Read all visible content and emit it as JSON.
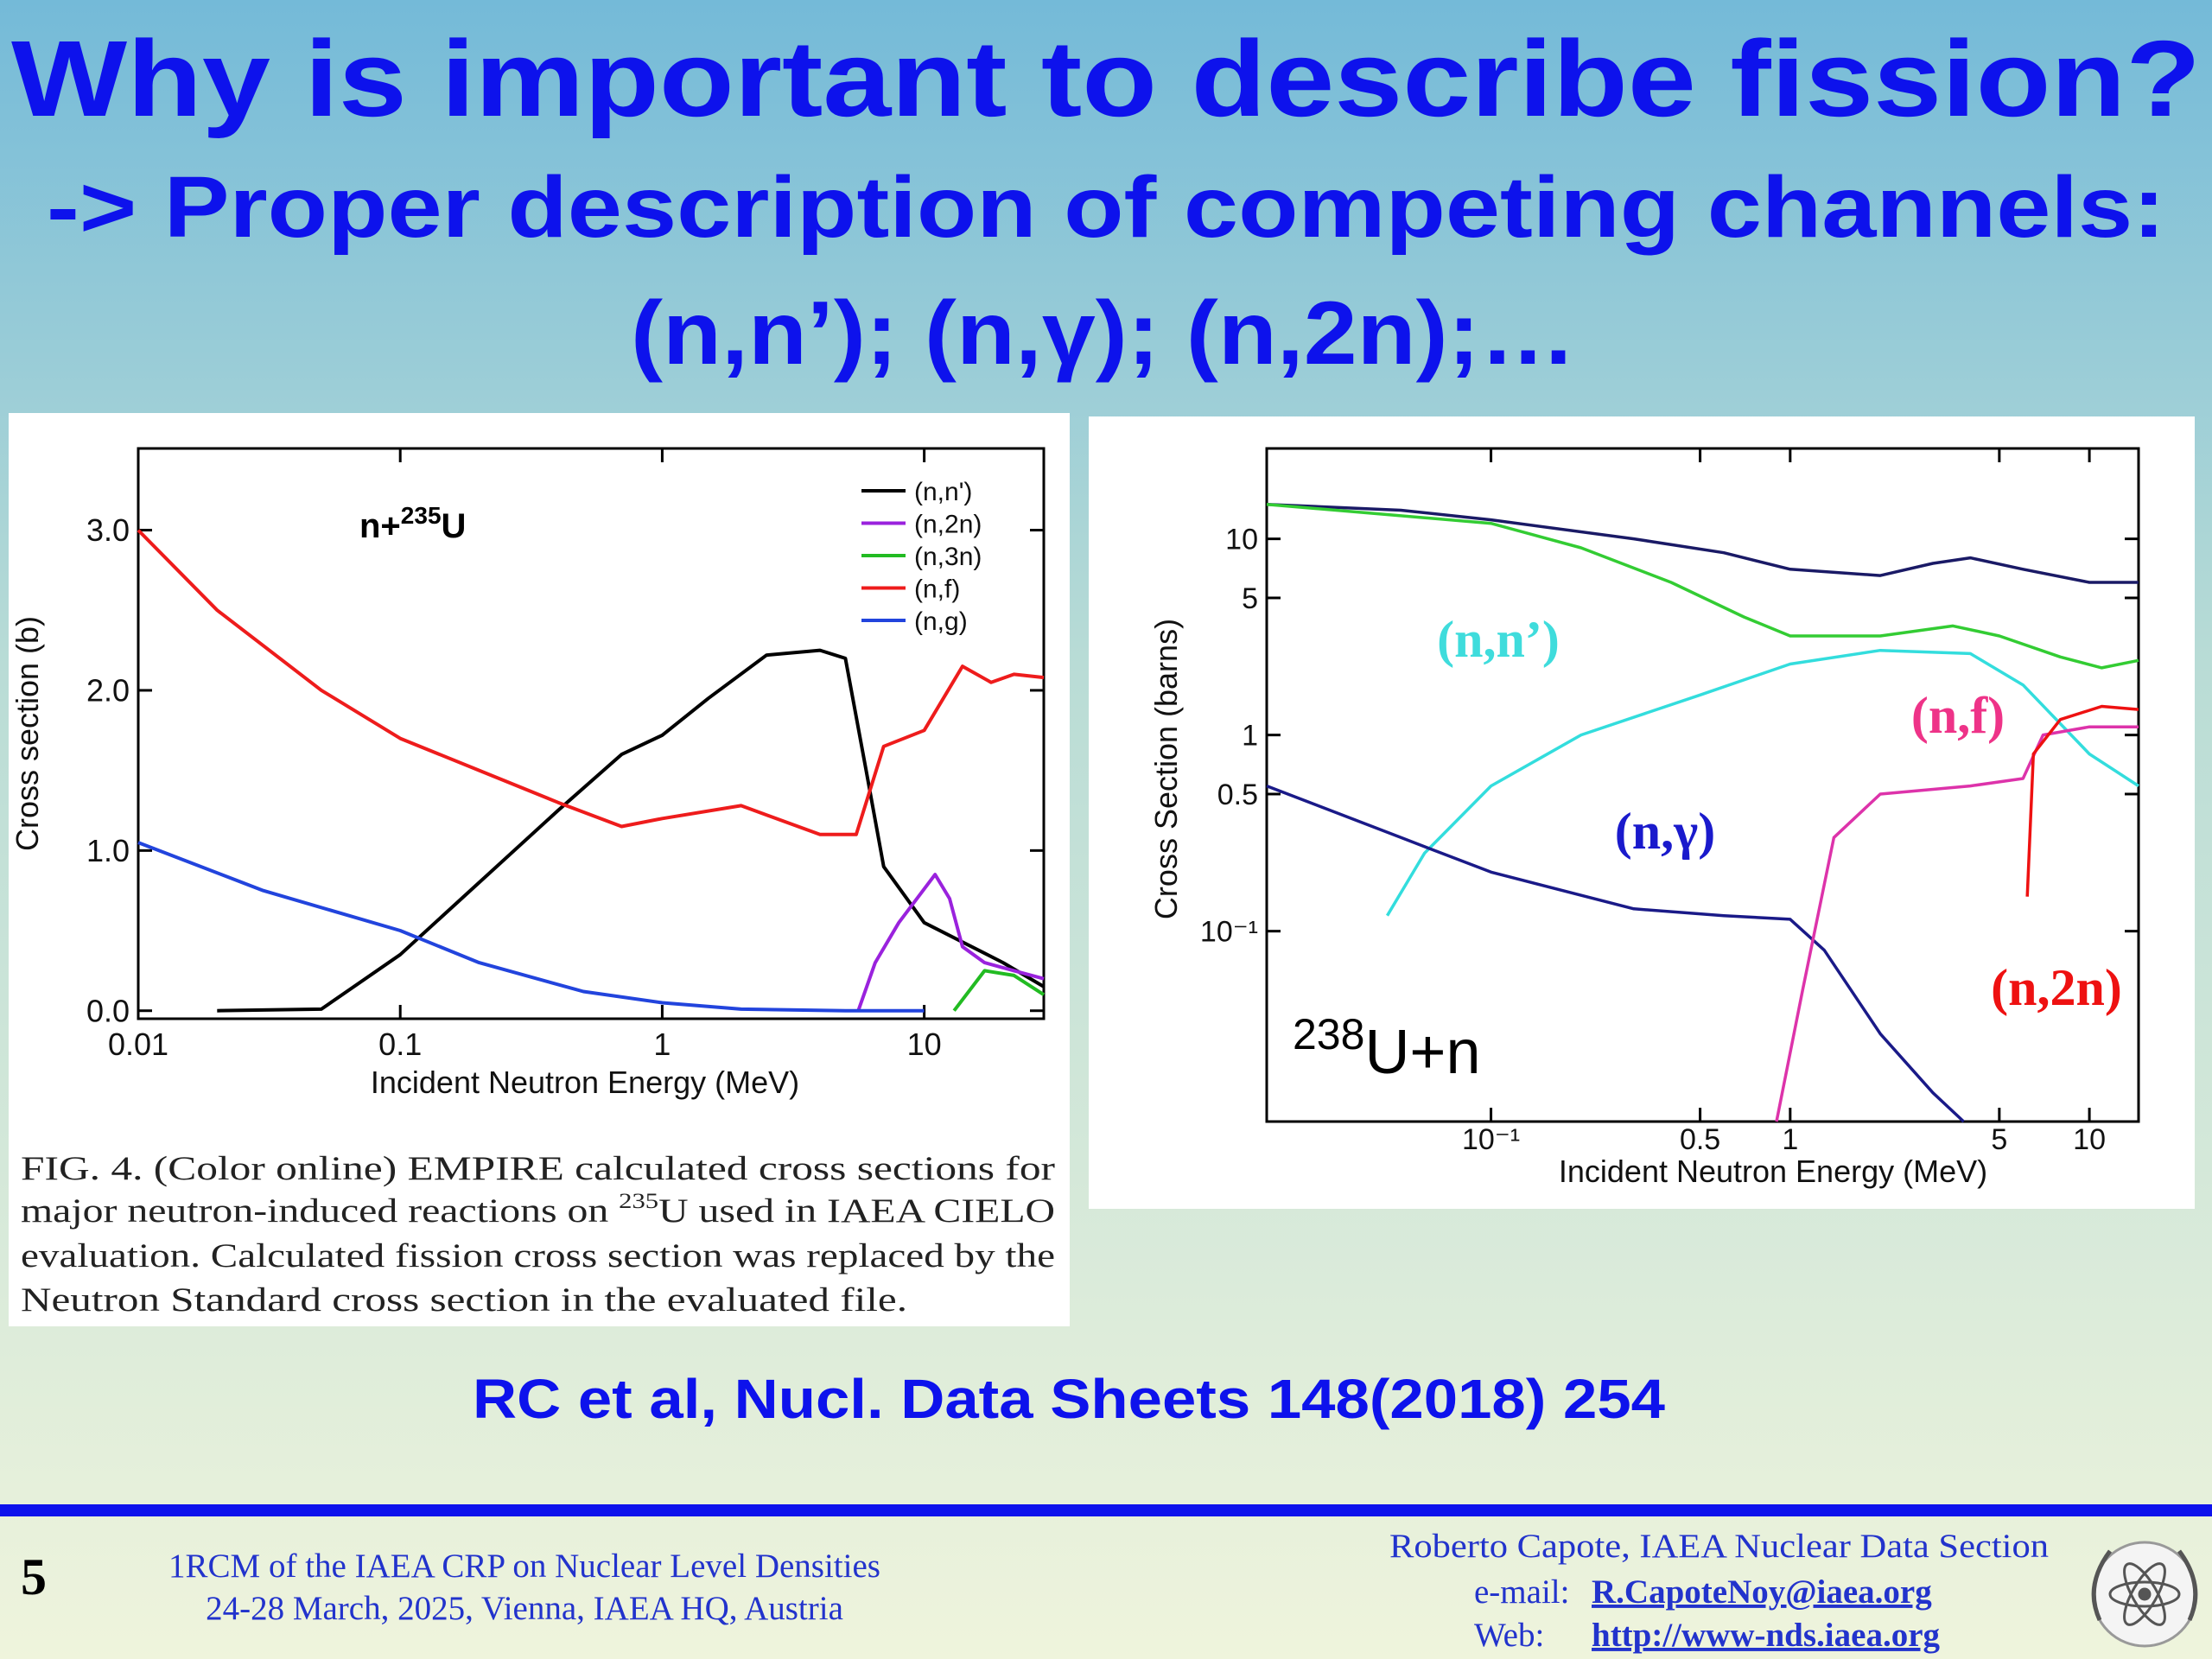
{
  "header": {
    "title": "Why is important to describe fission?",
    "subtitle": "-> Proper description of competing channels:",
    "channels": "(n,n’); (n,γ); (n,2n);…"
  },
  "chart_data": [
    {
      "type": "line",
      "xlabel": "Incident Neutron Energy (MeV)",
      "ylabel": "Cross section (b)",
      "annotation": {
        "before": "n+",
        "sup": "235",
        "after": "U"
      },
      "xscale": "log",
      "xlim": [
        0.01,
        28.6
      ],
      "ylim": [
        -0.05,
        3.51
      ],
      "xticks": [
        0.01,
        0.1,
        1,
        10
      ],
      "yticks": [
        {
          "value": 0,
          "label": "0.0"
        },
        {
          "value": 1,
          "label": "1.0"
        },
        {
          "value": 2,
          "label": "2.0"
        },
        {
          "value": 3,
          "label": "3.0"
        }
      ],
      "legend": "upper right",
      "series": [
        {
          "name": "(n,n')",
          "color": "#000000",
          "x": [
            0.02,
            0.05,
            0.1,
            0.2,
            0.4,
            0.7,
            1,
            1.5,
            2.5,
            4,
            5,
            6,
            7,
            10,
            20,
            28.6
          ],
          "values": [
            0,
            0.01,
            0.35,
            0.8,
            1.25,
            1.6,
            1.72,
            1.95,
            2.22,
            2.25,
            2.2,
            1.5,
            0.9,
            0.55,
            0.3,
            0.15
          ]
        },
        {
          "name": "(n,2n)",
          "color": "#9a22dd",
          "x": [
            5.6,
            6.5,
            8,
            11,
            12.5,
            14,
            17,
            22,
            28.6
          ],
          "values": [
            0,
            0.3,
            0.55,
            0.85,
            0.7,
            0.4,
            0.3,
            0.25,
            0.2
          ]
        },
        {
          "name": "(n,3n)",
          "color": "#22bb22",
          "x": [
            13,
            17,
            22,
            28.6
          ],
          "values": [
            0,
            0.25,
            0.22,
            0.1
          ]
        },
        {
          "name": "(n,f)",
          "color": "#ee1c1c",
          "x": [
            0.01,
            0.02,
            0.05,
            0.1,
            0.2,
            0.4,
            0.7,
            1,
            2,
            4,
            5.5,
            7,
            10,
            14,
            18,
            22,
            28.6
          ],
          "values": [
            3.0,
            2.5,
            2.0,
            1.7,
            1.5,
            1.3,
            1.15,
            1.2,
            1.28,
            1.1,
            1.1,
            1.65,
            1.75,
            2.15,
            2.05,
            2.1,
            2.08
          ]
        },
        {
          "name": "(n,g)",
          "color": "#2244dd",
          "x": [
            0.01,
            0.03,
            0.1,
            0.2,
            0.5,
            1,
            2,
            5,
            10
          ],
          "values": [
            1.05,
            0.75,
            0.5,
            0.3,
            0.12,
            0.05,
            0.01,
            0,
            0
          ]
        }
      ]
    },
    {
      "type": "line",
      "xlabel": "Incident Neutron Energy (MeV)",
      "ylabel": "Cross Section (barns)",
      "xscale": "log",
      "yscale": "log",
      "xlim": [
        0.0178,
        14.6
      ],
      "ylim": [
        0.0107,
        28.9
      ],
      "xticks": [
        {
          "value": 0.1,
          "label": "10⁻¹"
        },
        0.5,
        1,
        5,
        10
      ],
      "yticks": [
        {
          "value": 0.1,
          "label": "10⁻¹"
        },
        0.5,
        1,
        5,
        10
      ],
      "annotations": [
        {
          "text": "(n,n’)",
          "color": "#3fdcdc"
        },
        {
          "text": "(n,f)",
          "color": "#ee3388"
        },
        {
          "text": "(n,γ)",
          "color": "#1a1acc"
        },
        {
          "text": "(n,2n)",
          "color": "#ee1111"
        }
      ],
      "target": {
        "sup": "238",
        "after": "U+n"
      },
      "series": [
        {
          "color": "#1a1a66",
          "x": [
            0.0178,
            0.05,
            0.1,
            0.3,
            0.6,
            1,
            2,
            3,
            4,
            6,
            10,
            14.6
          ],
          "values": [
            15,
            14,
            12.5,
            10,
            8.5,
            7,
            6.5,
            7.5,
            8,
            7,
            6,
            6
          ]
        },
        {
          "color": "#33cc33",
          "x": [
            0.0178,
            0.1,
            0.2,
            0.4,
            0.7,
            1,
            2,
            3.5,
            5,
            8,
            11,
            14.6
          ],
          "values": [
            15,
            12,
            9,
            6,
            4,
            3.2,
            3.2,
            3.6,
            3.2,
            2.5,
            2.2,
            2.4
          ]
        },
        {
          "color": "#33dddd",
          "x": [
            0.045,
            0.06,
            0.1,
            0.2,
            0.5,
            1,
            2,
            4,
            6,
            10,
            14.6
          ],
          "values": [
            0.12,
            0.25,
            0.55,
            1.0,
            1.6,
            2.3,
            2.7,
            2.6,
            1.8,
            0.8,
            0.55
          ]
        },
        {
          "color": "#1a1a88",
          "x": [
            0.0178,
            0.05,
            0.1,
            0.3,
            0.6,
            1,
            1.3,
            2,
            3,
            3.8
          ],
          "values": [
            0.55,
            0.3,
            0.2,
            0.13,
            0.12,
            0.115,
            0.08,
            0.03,
            0.015,
            0.0107
          ]
        },
        {
          "color": "#dd33aa",
          "x": [
            0.9,
            1.1,
            1.4,
            2,
            4,
            6,
            7,
            10,
            14.6
          ],
          "values": [
            0.0107,
            0.05,
            0.3,
            0.5,
            0.55,
            0.6,
            1.0,
            1.1,
            1.1
          ]
        },
        {
          "color": "#ee1111",
          "x": [
            6.2,
            6.5,
            8,
            11,
            14.6
          ],
          "values": [
            0.15,
            0.8,
            1.2,
            1.4,
            1.35
          ]
        }
      ]
    }
  ],
  "caption": {
    "lines": [
      "FIG. 4. (Color online) EMPIRE calculated cross sections for",
      {
        "before": "major neutron-induced reactions on ",
        "sup": "235",
        "after": "U used in IAEA CIELO"
      },
      "evaluation. Calculated fission cross section was replaced by the",
      "Neutron Standard cross section in the evaluated file."
    ]
  },
  "reference": "RC et al, Nucl. Data Sheets 148(2018) 254",
  "footer": {
    "page": "5",
    "event": "1RCM of the IAEA CRP on Nuclear Level Densities",
    "dates": "24-28 March, 2025, Vienna, IAEA HQ, Austria",
    "author": "Roberto Capote, IAEA Nuclear Data Section",
    "email_label": "e-mail:",
    "email": "R.CapoteNoy@iaea.org",
    "web_label": "Web:",
    "web": "http://www-nds.iaea.org"
  }
}
